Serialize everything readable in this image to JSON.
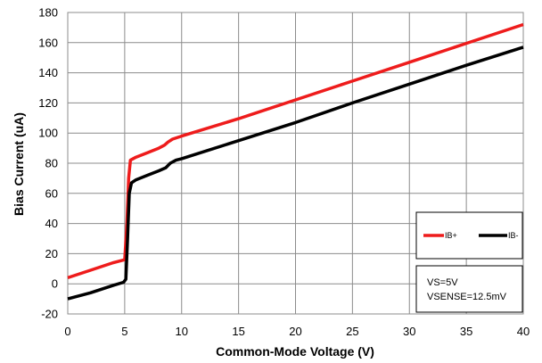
{
  "chart_data": {
    "type": "line",
    "xlabel": "Common-Mode Voltage (V)",
    "ylabel": "Bias Current (uA)",
    "xlim": [
      0,
      40
    ],
    "ylim": [
      -20,
      180
    ],
    "x_ticks": [
      0,
      5,
      10,
      15,
      20,
      25,
      30,
      35,
      40
    ],
    "y_ticks": [
      -20,
      0,
      20,
      40,
      60,
      80,
      100,
      120,
      140,
      160,
      180
    ],
    "grid": true,
    "legend_position": "right",
    "series": [
      {
        "name": "IB+",
        "color": "#ee1c1c",
        "x": [
          0,
          2,
          4,
          5.0,
          5.2,
          5.35,
          5.5,
          6,
          7,
          8,
          8.5,
          8.8,
          9.2,
          10,
          15,
          20,
          25,
          30,
          35,
          40
        ],
        "y": [
          4,
          9,
          14,
          16,
          40,
          70,
          82,
          84,
          87,
          90,
          92,
          94,
          96,
          98,
          109.5,
          122,
          134.5,
          147,
          159.5,
          172
        ]
      },
      {
        "name": "IB-",
        "color": "#000000",
        "x": [
          0,
          2,
          4,
          4.9,
          5.1,
          5.25,
          5.4,
          5.6,
          6,
          7,
          8,
          8.6,
          9,
          9.5,
          10,
          15,
          20,
          25,
          30,
          35,
          40
        ],
        "y": [
          -10,
          -6,
          -1,
          1,
          3,
          30,
          60,
          67,
          69,
          72,
          75,
          77,
          80,
          82,
          83,
          95,
          107,
          120,
          132.5,
          145,
          157
        ]
      }
    ]
  },
  "legend": {
    "label_ibp": "IB+",
    "label_ibm": "IB-"
  },
  "annotation": {
    "line1": "VS=5V",
    "line2": "VSENSE=12.5mV"
  }
}
